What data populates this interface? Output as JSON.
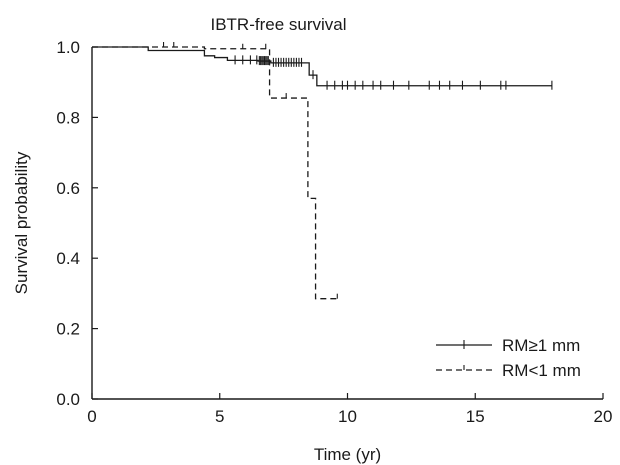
{
  "chart_data": {
    "type": "line",
    "title": "IBTR-free survival",
    "xlabel": "Time (yr)",
    "ylabel": "Survival probability",
    "xlim": [
      0,
      20
    ],
    "ylim": [
      0,
      1
    ],
    "xticks": [
      0,
      5,
      10,
      15,
      20
    ],
    "xtick_labels": [
      "0",
      "5",
      "10",
      "15",
      "20"
    ],
    "yticks": [
      0,
      0.2,
      0.4,
      0.6,
      0.8,
      1.0
    ],
    "ytick_labels": [
      "0.0",
      "0.2",
      "0.4",
      "0.6",
      "0.8",
      "1.0"
    ],
    "grid": false,
    "legend_position": "bottom-right",
    "series": [
      {
        "name": "RM≥1 mm",
        "color": "#1a1a1a",
        "line_style": "solid",
        "steps": [
          [
            0,
            1.0
          ],
          [
            2.2,
            0.99
          ],
          [
            4.4,
            0.975
          ],
          [
            4.8,
            0.97
          ],
          [
            5.3,
            0.962
          ],
          [
            6.5,
            0.96
          ],
          [
            7.0,
            0.955
          ],
          [
            8.5,
            0.92
          ],
          [
            8.8,
            0.89
          ],
          [
            18.0,
            0.89
          ]
        ],
        "censored": [
          [
            5.6,
            0.962
          ],
          [
            5.9,
            0.962
          ],
          [
            6.2,
            0.962
          ],
          [
            6.45,
            0.962
          ],
          [
            6.55,
            0.96
          ],
          [
            6.6,
            0.96
          ],
          [
            6.65,
            0.96
          ],
          [
            6.7,
            0.96
          ],
          [
            6.75,
            0.96
          ],
          [
            6.8,
            0.96
          ],
          [
            6.85,
            0.96
          ],
          [
            6.9,
            0.96
          ],
          [
            7.1,
            0.955
          ],
          [
            7.2,
            0.955
          ],
          [
            7.3,
            0.955
          ],
          [
            7.4,
            0.955
          ],
          [
            7.5,
            0.955
          ],
          [
            7.6,
            0.955
          ],
          [
            7.7,
            0.955
          ],
          [
            7.8,
            0.955
          ],
          [
            7.9,
            0.955
          ],
          [
            8.0,
            0.955
          ],
          [
            8.1,
            0.955
          ],
          [
            8.2,
            0.955
          ],
          [
            8.65,
            0.92
          ],
          [
            9.2,
            0.89
          ],
          [
            9.5,
            0.89
          ],
          [
            9.8,
            0.89
          ],
          [
            10.0,
            0.89
          ],
          [
            10.3,
            0.89
          ],
          [
            10.6,
            0.89
          ],
          [
            11.0,
            0.89
          ],
          [
            11.3,
            0.89
          ],
          [
            11.8,
            0.89
          ],
          [
            12.4,
            0.89
          ],
          [
            13.2,
            0.89
          ],
          [
            13.6,
            0.89
          ],
          [
            14.0,
            0.89
          ],
          [
            14.5,
            0.89
          ],
          [
            15.2,
            0.89
          ],
          [
            16.0,
            0.89
          ],
          [
            16.2,
            0.89
          ],
          [
            18.0,
            0.89
          ]
        ]
      },
      {
        "name": "RM<1 mm",
        "color": "#1a1a1a",
        "line_style": "dashed",
        "steps": [
          [
            0,
            1.0
          ],
          [
            4.4,
            0.995
          ],
          [
            6.95,
            0.855
          ],
          [
            8.45,
            0.57
          ],
          [
            8.75,
            0.285
          ],
          [
            9.6,
            0.285
          ]
        ],
        "censored": [
          [
            2.8,
            1.0
          ],
          [
            3.2,
            1.0
          ],
          [
            5.9,
            0.995
          ],
          [
            6.8,
            0.995
          ],
          [
            7.6,
            0.855
          ],
          [
            9.6,
            0.285
          ]
        ]
      }
    ]
  }
}
